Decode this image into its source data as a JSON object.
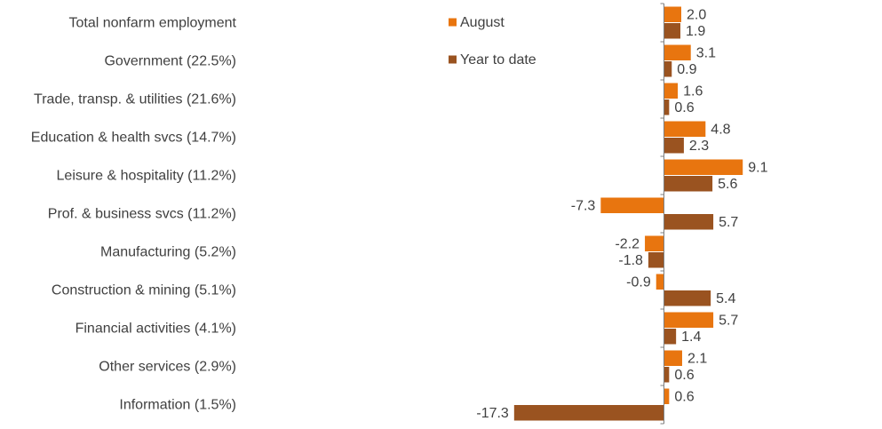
{
  "chart_data": {
    "type": "bar",
    "orientation": "horizontal",
    "categories": [
      "Total nonfarm employment",
      "Government (22.5%)",
      "Trade, transp. & utilities (21.6%)",
      "Education & health svcs (14.7%)",
      "Leisure & hospitality (11.2%)",
      "Prof. & business svcs (11.2%)",
      "Manufacturing (5.2%)",
      "Construction & mining (5.1%)",
      "Financial activities (4.1%)",
      "Other services (2.9%)",
      "Information (1.5%)"
    ],
    "series": [
      {
        "name": "August",
        "color": "#E8750F",
        "values": [
          2.0,
          3.1,
          1.6,
          4.8,
          9.1,
          -7.3,
          -2.2,
          -0.9,
          5.7,
          2.1,
          0.6
        ],
        "labels": [
          "2.0",
          "3.1",
          "1.6",
          "4.8",
          "9.1",
          "-7.3",
          "-2.2",
          "-0.9",
          "5.7",
          "2.1",
          "0.6"
        ]
      },
      {
        "name": "Year to date",
        "color": "#9A5320",
        "values": [
          1.9,
          0.9,
          0.6,
          2.3,
          5.6,
          5.7,
          -1.8,
          5.4,
          1.4,
          0.6,
          -17.3
        ],
        "labels": [
          "1.9",
          "0.9",
          "0.6",
          "2.3",
          "5.6",
          "5.7",
          "-1.8",
          "5.4",
          "1.4",
          "0.6",
          "-17.3"
        ]
      }
    ],
    "xlim": [
      -17.3,
      9.1
    ],
    "grid": false,
    "legend_position": "top-center"
  }
}
